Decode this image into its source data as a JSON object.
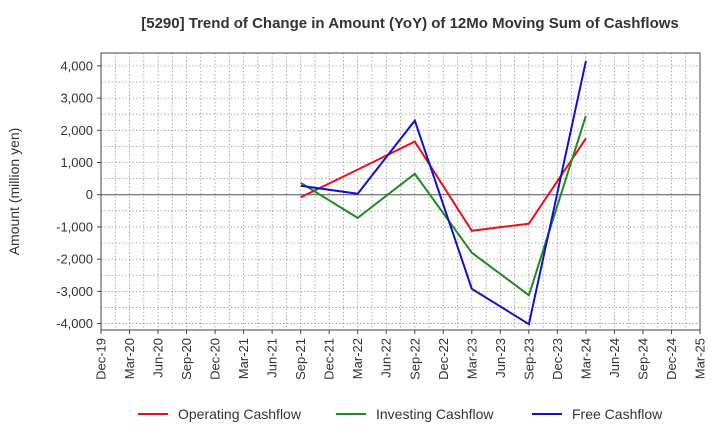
{
  "chart_data": {
    "type": "line",
    "title": "[5290]  Trend of Change in Amount (YoY) of 12Mo Moving Sum of Cashflows",
    "xlabel": "",
    "ylabel": "Amount (million yen)",
    "ylim": [
      -4200,
      4400
    ],
    "yticks": [
      -4000,
      -3000,
      -2000,
      -1000,
      0,
      1000,
      2000,
      3000,
      4000
    ],
    "ytick_labels": [
      "-4,000",
      "-3,000",
      "-2,000",
      "-1,000",
      "0",
      "1,000",
      "2,000",
      "3,000",
      "4,000"
    ],
    "grid": true,
    "legend_position": "bottom",
    "categories": [
      "Dec-19",
      "Mar-20",
      "Jun-20",
      "Sep-20",
      "Dec-20",
      "Mar-21",
      "Jun-21",
      "Sep-21",
      "Dec-21",
      "Mar-22",
      "Jun-22",
      "Sep-22",
      "Dec-22",
      "Mar-23",
      "Jun-23",
      "Sep-23",
      "Dec-23",
      "Mar-24",
      "Jun-24",
      "Sep-24",
      "Dec-24",
      "Mar-25"
    ],
    "series": [
      {
        "name": "Operating Cashflow",
        "color": "#e8101c",
        "points": [
          [
            "Sep-21",
            -80
          ],
          [
            "Mar-22",
            780
          ],
          [
            "Sep-22",
            1650
          ],
          [
            "Mar-23",
            -1120
          ],
          [
            "Sep-23",
            -900
          ],
          [
            "Mar-24",
            1750
          ]
        ]
      },
      {
        "name": "Investing Cashflow",
        "color": "#1f8a1f",
        "points": [
          [
            "Sep-21",
            370
          ],
          [
            "Mar-22",
            -720
          ],
          [
            "Sep-22",
            650
          ],
          [
            "Mar-23",
            -1800
          ],
          [
            "Sep-23",
            -3120
          ],
          [
            "Mar-24",
            2450
          ]
        ]
      },
      {
        "name": "Free Cashflow",
        "color": "#1010d0",
        "points": [
          [
            "Sep-21",
            280
          ],
          [
            "Mar-22",
            30
          ],
          [
            "Sep-22",
            2300
          ],
          [
            "Mar-23",
            -2920
          ],
          [
            "Sep-23",
            -4020
          ],
          [
            "Mar-24",
            4150
          ]
        ]
      }
    ]
  }
}
